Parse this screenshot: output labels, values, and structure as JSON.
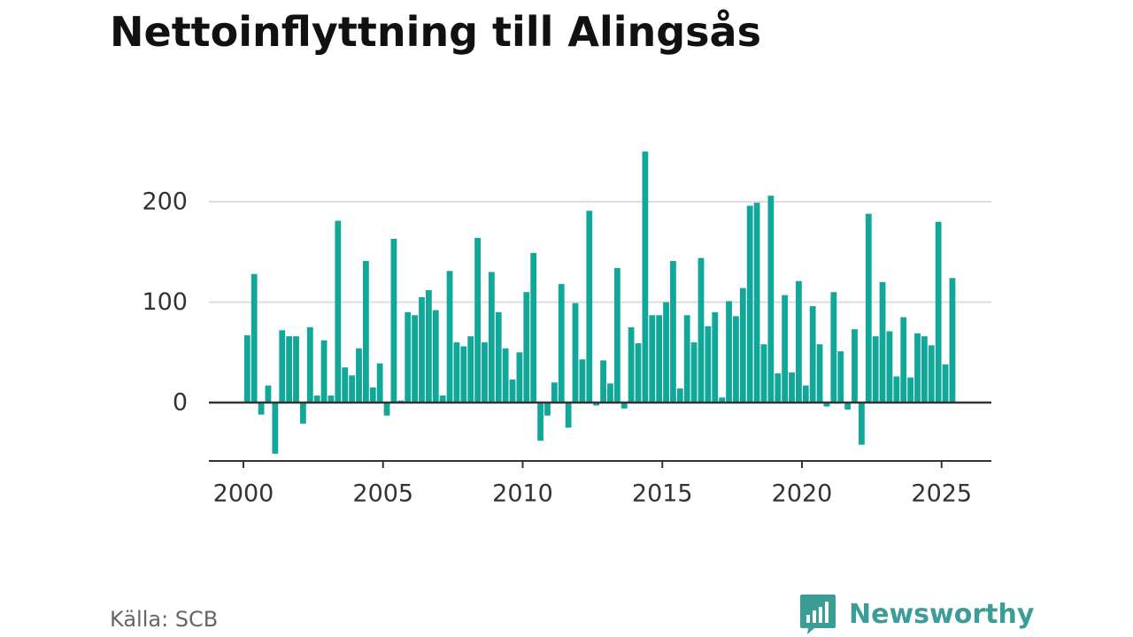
{
  "title": "Nettoinflyttning till Alingsås",
  "source": "Källa: SCB",
  "brand": {
    "name": "Newsworthy",
    "logo_icon": "newsworthy-chart-bubble-icon",
    "color": "#3c9c96"
  },
  "colors": {
    "bar": "#11a89a",
    "grid": "#dddddd",
    "baseline": "#333333",
    "text": "#333333"
  },
  "chart_data": {
    "type": "bar",
    "title": "Nettoinflyttning till Alingsås",
    "xlabel": "",
    "ylabel": "",
    "frequency": "quarterly",
    "start": "2000 Q1",
    "xticks": [
      "2000",
      "2005",
      "2010",
      "2015",
      "2020",
      "2025"
    ],
    "yticks": [
      0,
      100,
      200
    ],
    "ylim": [
      -58,
      260
    ],
    "xlim": [
      1999.6,
      2025.9
    ],
    "grid": true,
    "values": [
      67,
      128,
      -12,
      17,
      -51,
      72,
      66,
      66,
      -21,
      75,
      7,
      62,
      7,
      181,
      35,
      27,
      54,
      141,
      15,
      39,
      -13,
      163,
      2,
      90,
      87,
      105,
      112,
      92,
      7,
      131,
      60,
      56,
      66,
      164,
      60,
      130,
      90,
      54,
      23,
      50,
      110,
      149,
      -38,
      -13,
      20,
      118,
      -25,
      99,
      43,
      191,
      -3,
      42,
      19,
      134,
      -6,
      75,
      59,
      250,
      87,
      87,
      100,
      141,
      14,
      87,
      60,
      144,
      76,
      90,
      5,
      101,
      86,
      114,
      196,
      199,
      58,
      206,
      29,
      107,
      30,
      121,
      17,
      96,
      58,
      -4,
      110,
      51,
      -7,
      73,
      -42,
      188,
      66,
      120,
      71,
      26,
      85,
      25,
      69,
      66,
      57,
      180,
      38,
      124
    ]
  }
}
